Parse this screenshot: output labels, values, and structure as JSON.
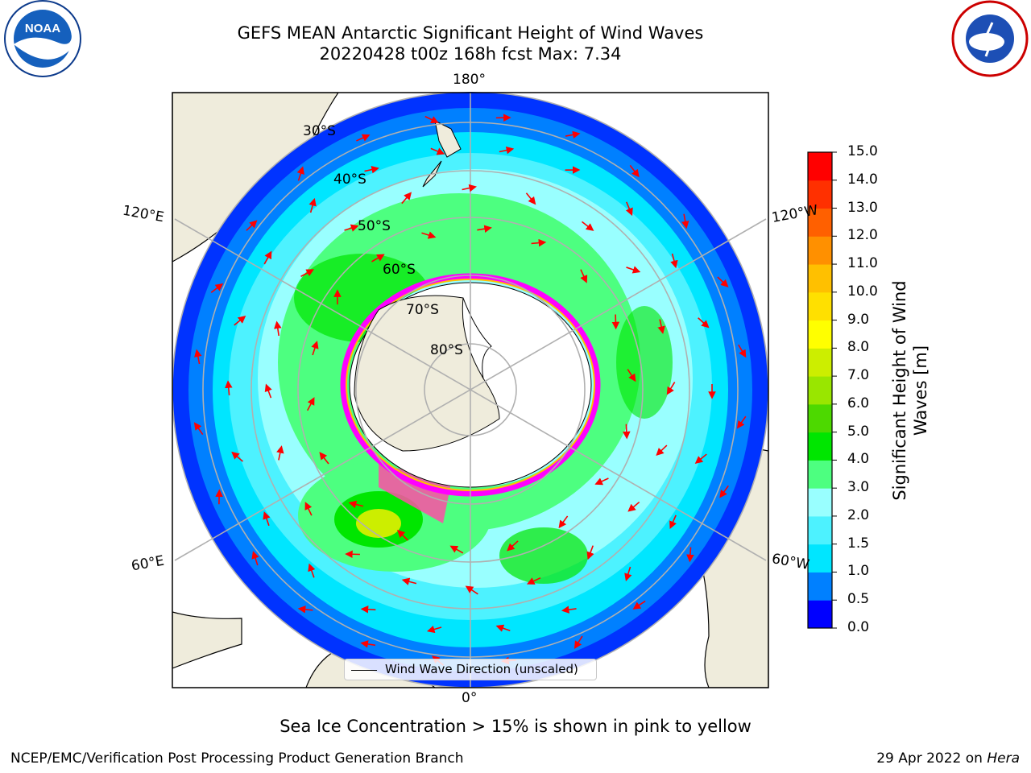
{
  "title": {
    "line1": "GEFS MEAN Antarctic Significant Height of Wind Waves",
    "line2": "20220428 t00z 168h fcst   Max: 7.34"
  },
  "map": {
    "longitude_labels": {
      "top": "180°",
      "bottom": "0°",
      "upper_left": "120°E",
      "lower_left": "60°E",
      "upper_right": "120°W",
      "lower_right": "60°W"
    },
    "latitude_labels": [
      "30°S",
      "40°S",
      "50°S",
      "60°S",
      "70°S",
      "80°S"
    ],
    "legend": "Wind Wave Direction (unscaled)",
    "arrow_color": "#ff0000"
  },
  "colorbar": {
    "label": "Significant Height of Wind Waves [m]",
    "ticks": [
      "0.0",
      "0.5",
      "1.0",
      "1.5",
      "2.0",
      "3.0",
      "4.0",
      "5.0",
      "6.0",
      "7.0",
      "8.0",
      "9.0",
      "10.0",
      "11.0",
      "12.0",
      "13.0",
      "14.0",
      "15.0"
    ],
    "colors": [
      "#0000ff",
      "#0080ff",
      "#00e6ff",
      "#4df2ff",
      "#99ffff",
      "#4dff80",
      "#00e600",
      "#4dd900",
      "#99e600",
      "#ccee00",
      "#ffff00",
      "#ffe000",
      "#ffc000",
      "#ff9000",
      "#ff6000",
      "#ff3000",
      "#ff0000"
    ]
  },
  "logos": {
    "left": "NOAA",
    "right": "NATIONAL WEATHER SERVICE"
  },
  "note": "Sea Ice Concentration > 15% is shown in pink to yellow",
  "footer": {
    "left": "NCEP/EMC/Verification Post Processing Product Generation Branch",
    "right_prefix": "29 Apr 2022 on ",
    "right_host": "Hera"
  }
}
